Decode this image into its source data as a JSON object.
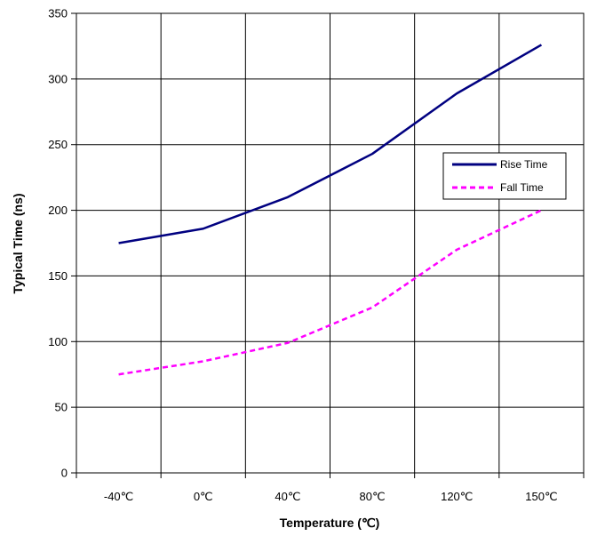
{
  "chart_data": {
    "type": "line",
    "title": "",
    "xlabel": "Temperature (℃)",
    "ylabel": "Typical Time (ns)",
    "categories": [
      "-40℃",
      "0℃",
      "40℃",
      "80℃",
      "120℃",
      "150℃"
    ],
    "ylim": [
      0,
      350
    ],
    "yticks": [
      0,
      50,
      100,
      150,
      200,
      250,
      300,
      350
    ],
    "grid": true,
    "legend_position": "right",
    "series": [
      {
        "name": "Rise Time",
        "values": [
          175,
          186,
          210,
          243,
          289,
          326
        ],
        "color": "#000080",
        "style": "solid"
      },
      {
        "name": "Fall Time",
        "values": [
          75,
          85,
          99,
          126,
          170,
          200
        ],
        "color": "#ff00ff",
        "style": "dashed"
      }
    ]
  }
}
